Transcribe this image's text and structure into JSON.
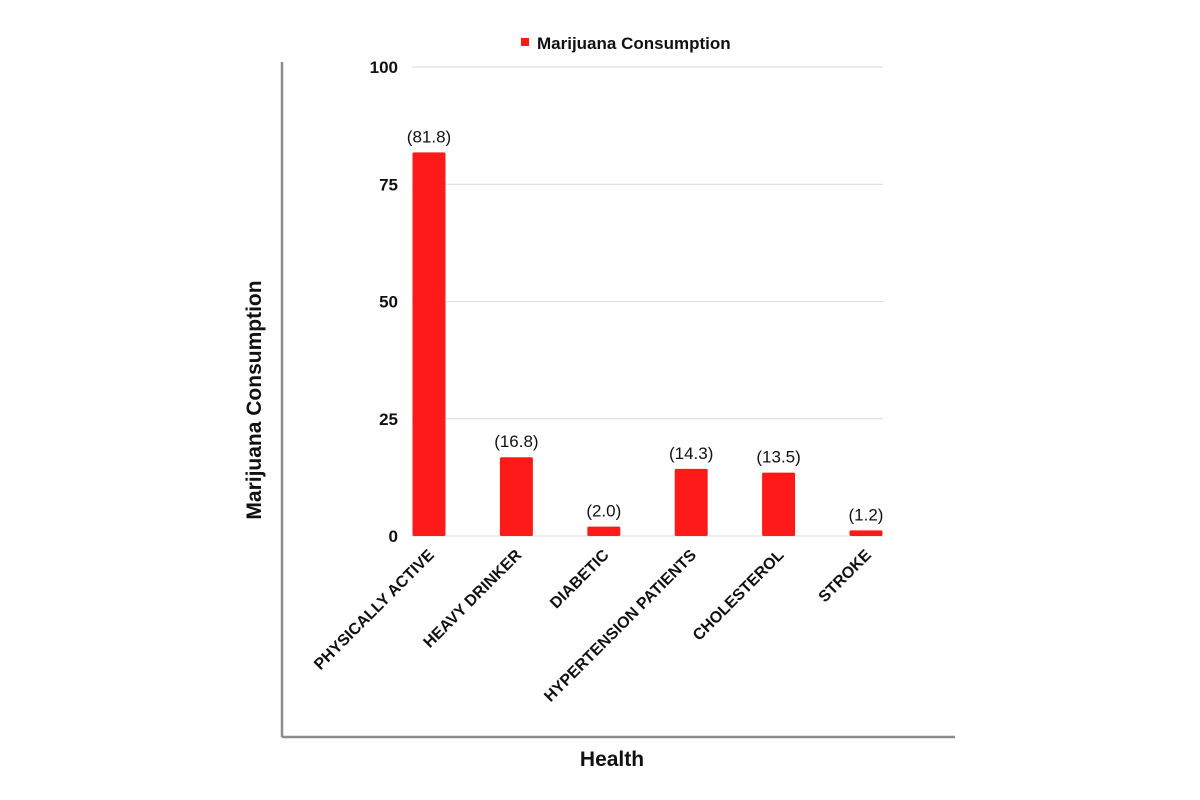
{
  "chart_data": {
    "type": "bar",
    "categories": [
      "PHYSICALLY ACTIVE",
      "HEAVY DRINKER",
      "DIABETIC",
      "HYPERTENSION PATIENTS",
      "CHOLESTEROL",
      "STROKE"
    ],
    "series": [
      {
        "name": "Marijuana Consumption",
        "values": [
          81.8,
          16.8,
          2.0,
          14.3,
          13.5,
          1.2
        ],
        "labels": [
          "(81.8)",
          "(16.8)",
          "(2.0)",
          "(14.3)",
          "(13.5)",
          "(1.2)"
        ]
      }
    ],
    "xlabel": "Health",
    "ylabel": "Marijuana Consumption",
    "ylim": [
      0,
      100
    ],
    "yticks": [
      0,
      25,
      50,
      75,
      100
    ],
    "grid": true,
    "legend": "top-center",
    "colors": {
      "bar": "#ff1a1a",
      "grid": "#d9d9d9",
      "axis": "#8c8c8c"
    }
  }
}
